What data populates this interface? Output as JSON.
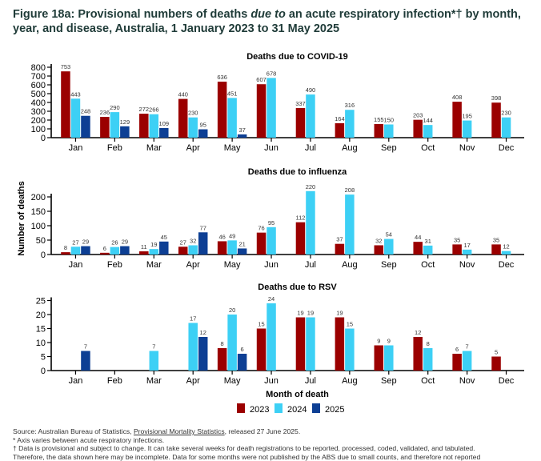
{
  "figure": {
    "title_prefix": "Figure 18a: Provisional numbers of deaths ",
    "title_emphasis": "due to",
    "title_suffix": " an acute respiratory infection*† by month, year, and disease, Australia, 1 January 2023 to 31 May 2025"
  },
  "legend": [
    {
      "label": "2023",
      "color": "#9b0000"
    },
    {
      "label": "2024",
      "color": "#3dd0f5"
    },
    {
      "label": "2025",
      "color": "#0d3f94"
    }
  ],
  "notes": {
    "source_prefix": "Source: Australian Bureau of Statistics, ",
    "source_link": "Provisional Mortality Statistics",
    "source_suffix": ", released 27 June 2025.",
    "note1": "* Axis varies between acute respiratory infections.",
    "note2": "† Data is provisional and subject to change. It can take several weeks for death registrations to be reported, processed, coded, validated, and tabulated.",
    "note3": "Therefore, the data shown here may be incomplete. Data for some months were not published by the ABS due to small counts, and therefore not reported"
  },
  "chart_data": [
    {
      "type": "bar",
      "title": "Deaths due to COVID-19",
      "xlabel": "",
      "ylabel": "",
      "ylim": [
        0,
        800
      ],
      "yticks": [
        0,
        100,
        200,
        300,
        400,
        500,
        600,
        700,
        800
      ],
      "categories": [
        "Jan",
        "Feb",
        "Mar",
        "Apr",
        "May",
        "Jun",
        "Jul",
        "Aug",
        "Sep",
        "Oct",
        "Nov",
        "Dec"
      ],
      "series": [
        {
          "name": "2023",
          "values": [
            753,
            236,
            272,
            440,
            636,
            607,
            337,
            164,
            155,
            203,
            408,
            398
          ]
        },
        {
          "name": "2024",
          "values": [
            443,
            290,
            266,
            230,
            451,
            678,
            490,
            316,
            150,
            144,
            195,
            230
          ]
        },
        {
          "name": "2025",
          "values": [
            248,
            129,
            109,
            95,
            37,
            null,
            null,
            null,
            null,
            null,
            null,
            null
          ]
        }
      ],
      "grid": false
    },
    {
      "type": "bar",
      "title": "Deaths due to influenza",
      "xlabel": "",
      "ylabel": "Number of deaths",
      "ylim": [
        0,
        250
      ],
      "yticks": [
        0,
        50,
        100,
        150,
        200
      ],
      "categories": [
        "Jan",
        "Feb",
        "Mar",
        "Apr",
        "May",
        "Jun",
        "Jul",
        "Aug",
        "Sep",
        "Oct",
        "Nov",
        "Dec"
      ],
      "series": [
        {
          "name": "2023",
          "values": [
            8,
            6,
            11,
            27,
            46,
            76,
            112,
            37,
            32,
            44,
            35,
            35
          ]
        },
        {
          "name": "2024",
          "values": [
            27,
            26,
            19,
            32,
            49,
            95,
            220,
            208,
            54,
            31,
            17,
            12
          ]
        },
        {
          "name": "2025",
          "values": [
            29,
            29,
            45,
            77,
            21,
            null,
            null,
            null,
            null,
            null,
            null,
            null
          ]
        }
      ],
      "grid": false
    },
    {
      "type": "bar",
      "title": "Deaths due to RSV",
      "xlabel": "Month of death",
      "ylabel": "",
      "ylim": [
        0,
        26
      ],
      "yticks": [
        0,
        5,
        10,
        15,
        20,
        25
      ],
      "categories": [
        "Jan",
        "Feb",
        "Mar",
        "Apr",
        "May",
        "Jun",
        "Jul",
        "Aug",
        "Sep",
        "Oct",
        "Nov",
        "Dec"
      ],
      "series": [
        {
          "name": "2023",
          "values": [
            null,
            null,
            null,
            null,
            8,
            15,
            19,
            19,
            9,
            12,
            6,
            5
          ]
        },
        {
          "name": "2024",
          "values": [
            null,
            null,
            7,
            17,
            20,
            24,
            19,
            15,
            9,
            8,
            7,
            null
          ]
        },
        {
          "name": "2025",
          "values": [
            7,
            null,
            null,
            12,
            6,
            null,
            null,
            null,
            null,
            null,
            null,
            null
          ]
        }
      ],
      "grid": false,
      "legend": "bottom-center"
    }
  ]
}
